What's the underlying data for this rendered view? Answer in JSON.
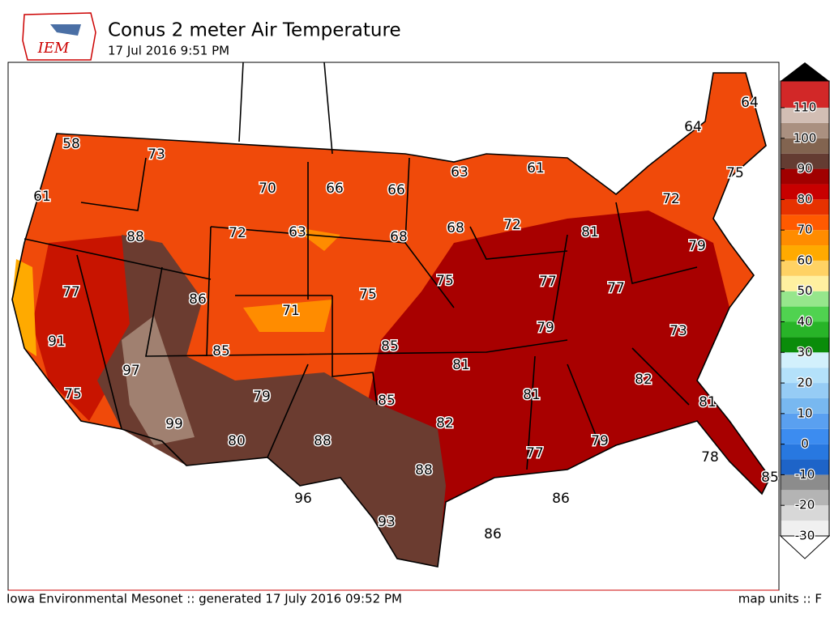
{
  "header": {
    "logo": "IEM",
    "title": "Conus 2 meter Air Temperature",
    "subtitle": "17 Jul 2016 9:51 PM"
  },
  "stations": [
    58,
    73,
    61,
    70,
    66,
    66,
    63,
    61,
    64,
    64,
    75,
    72,
    88,
    72,
    63,
    68,
    68,
    72,
    81,
    79,
    77,
    86,
    71,
    75,
    75,
    77,
    77,
    91,
    85,
    85,
    79,
    73,
    97,
    81,
    82,
    75,
    79,
    85,
    81,
    81,
    99,
    82,
    80,
    88,
    77,
    79,
    78,
    85,
    88,
    96,
    86,
    93,
    86
  ],
  "colorbar": {
    "ticks": [
      -30,
      -20,
      -10,
      0,
      10,
      20,
      30,
      40,
      50,
      60,
      70,
      80,
      90,
      100,
      110
    ],
    "colors": [
      "#f0f0f0",
      "#d8d8d8",
      "#b4b4b4",
      "#8c8c8c",
      "#1e64c8",
      "#2878e0",
      "#3c8cf0",
      "#5aa0f0",
      "#78b8f0",
      "#96ccf5",
      "#b4e1fa",
      "#d2f0fc",
      "#0a8c0a",
      "#28b428",
      "#50d250",
      "#96e68c",
      "#fff0a0",
      "#ffd264",
      "#ffaa00",
      "#ff8c00",
      "#ff5a00",
      "#e63200",
      "#c80000",
      "#a00000",
      "#643c32",
      "#826450",
      "#aa9080",
      "#d2beb4"
    ]
  },
  "footer": {
    "left": "Iowa Environmental Mesonet :: generated 17 July 2016 09:52 PM",
    "right": "map units :: F"
  }
}
